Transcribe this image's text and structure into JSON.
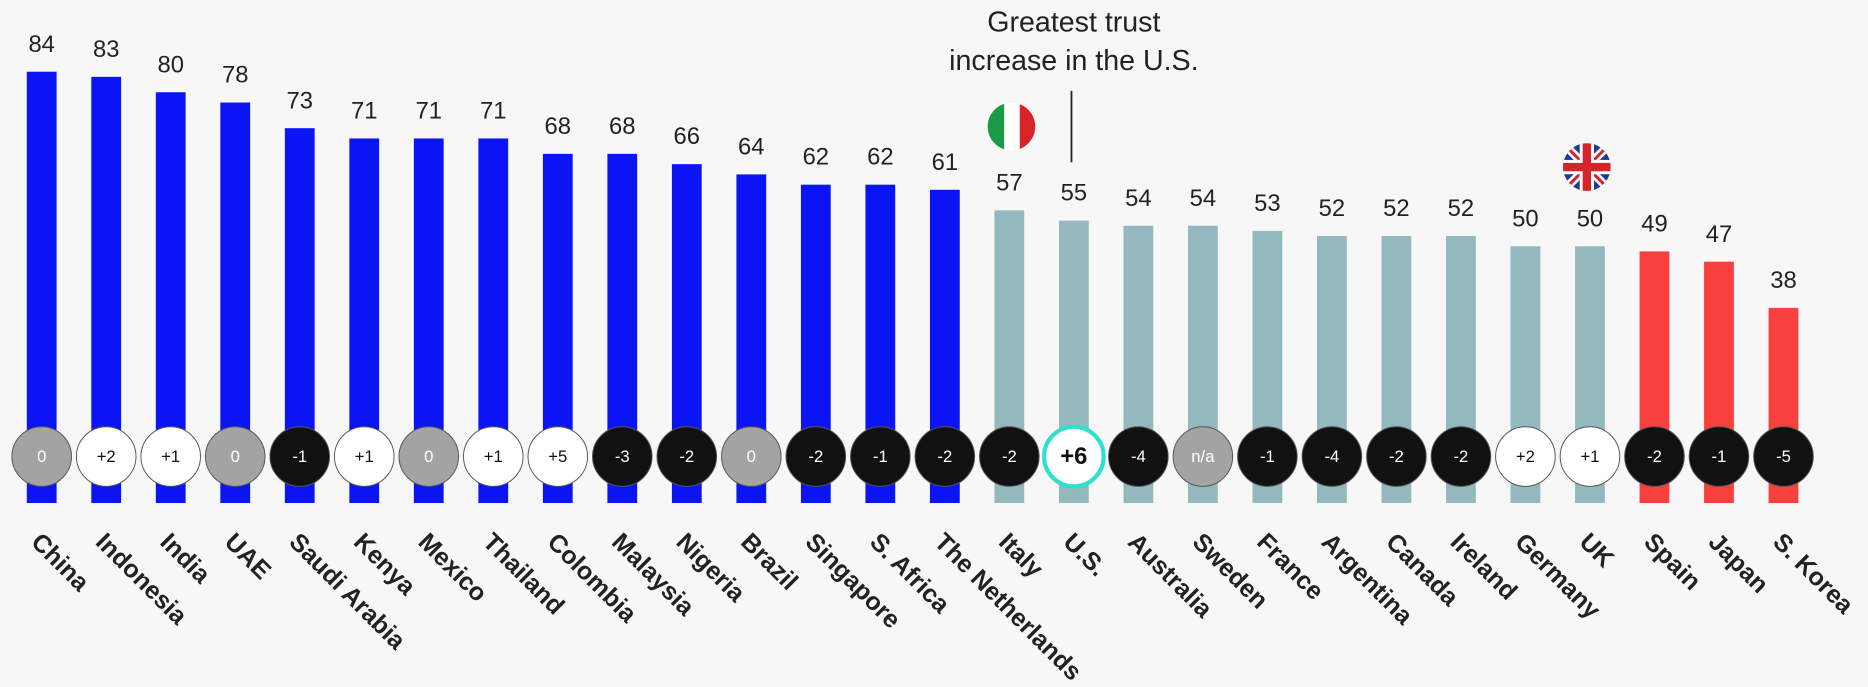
{
  "chart_data": {
    "type": "bar",
    "categories": [
      "China",
      "Indonesia",
      "India",
      "UAE",
      "Saudi Arabia",
      "Kenya",
      "Mexico",
      "Thailand",
      "Colombia",
      "Malaysia",
      "Nigeria",
      "Brazil",
      "Singapore",
      "S. Africa",
      "The Netherlands",
      "Italy",
      "U.S.",
      "Australia",
      "Sweden",
      "France",
      "Argentina",
      "Canada",
      "Ireland",
      "Germany",
      "UK",
      "Spain",
      "Japan",
      "S. Korea"
    ],
    "values": [
      84,
      83,
      80,
      78,
      73,
      71,
      71,
      71,
      68,
      68,
      66,
      64,
      62,
      62,
      61,
      57,
      55,
      54,
      54,
      53,
      52,
      52,
      52,
      50,
      50,
      49,
      47,
      38
    ],
    "colors": [
      "#0a14f5",
      "#0a14f5",
      "#0a14f5",
      "#0a14f5",
      "#0a14f5",
      "#0a14f5",
      "#0a14f5",
      "#0a14f5",
      "#0a14f5",
      "#0a14f5",
      "#0a14f5",
      "#0a14f5",
      "#0a14f5",
      "#0a14f5",
      "#0a14f5",
      "#93b8be",
      "#93b8be",
      "#93b8be",
      "#93b8be",
      "#93b8be",
      "#93b8be",
      "#93b8be",
      "#93b8be",
      "#93b8be",
      "#93b8be",
      "#fa3f3f",
      "#fa3f3f",
      "#fa3f3f"
    ],
    "changes": [
      "0",
      "+2",
      "+1",
      "0",
      "-1",
      "+1",
      "0",
      "+1",
      "+5",
      "-3",
      "-2",
      "0",
      "-2",
      "-1",
      "-2",
      "-2",
      "+6",
      "-4",
      "n/a",
      "-1",
      "-4",
      "-2",
      "-2",
      "+2",
      "+1",
      "-2",
      "-1",
      "-5"
    ],
    "ylim": [
      0,
      100
    ],
    "annotation": {
      "lines": [
        "Greatest trust",
        "increase in the U.S."
      ],
      "category": 16
    }
  }
}
